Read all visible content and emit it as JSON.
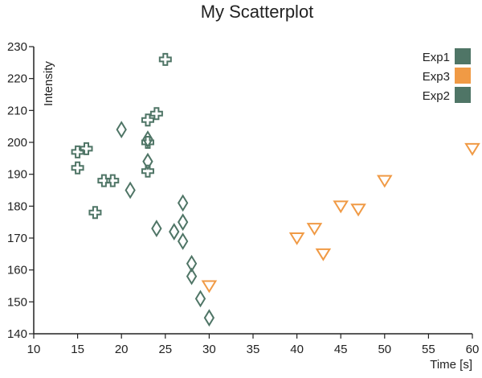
{
  "chart_data": {
    "type": "scatter",
    "title": "My Scatterplot",
    "xlabel": "Time [s]",
    "ylabel": "Intensity",
    "xlim": [
      10,
      60
    ],
    "ylim": [
      140,
      230
    ],
    "xticks": [
      10,
      15,
      20,
      25,
      30,
      35,
      40,
      45,
      50,
      55,
      60
    ],
    "yticks": [
      140,
      150,
      160,
      170,
      180,
      190,
      200,
      210,
      220,
      230
    ],
    "grid": false,
    "legend_position": "top-right",
    "series": [
      {
        "name": "Exp1",
        "marker": "cross",
        "color": "#4f7566",
        "points": [
          {
            "x": 15,
            "y": 197
          },
          {
            "x": 15,
            "y": 192
          },
          {
            "x": 16,
            "y": 198
          },
          {
            "x": 17,
            "y": 178
          },
          {
            "x": 18,
            "y": 188
          },
          {
            "x": 19,
            "y": 188
          },
          {
            "x": 23,
            "y": 207
          },
          {
            "x": 23,
            "y": 200
          },
          {
            "x": 23,
            "y": 191
          },
          {
            "x": 24,
            "y": 209
          },
          {
            "x": 25,
            "y": 226
          }
        ]
      },
      {
        "name": "Exp3",
        "marker": "triangle-down",
        "color": "#f09a45",
        "points": [
          {
            "x": 30,
            "y": 155
          },
          {
            "x": 40,
            "y": 170
          },
          {
            "x": 42,
            "y": 173
          },
          {
            "x": 43,
            "y": 165
          },
          {
            "x": 45,
            "y": 180
          },
          {
            "x": 47,
            "y": 179
          },
          {
            "x": 50,
            "y": 188
          },
          {
            "x": 60,
            "y": 198
          }
        ]
      },
      {
        "name": "Exp2",
        "marker": "diamond",
        "color": "#4f7566",
        "points": [
          {
            "x": 20,
            "y": 204
          },
          {
            "x": 21,
            "y": 185
          },
          {
            "x": 23,
            "y": 201
          },
          {
            "x": 23,
            "y": 194
          },
          {
            "x": 24,
            "y": 173
          },
          {
            "x": 26,
            "y": 172
          },
          {
            "x": 27,
            "y": 181
          },
          {
            "x": 27,
            "y": 175
          },
          {
            "x": 27,
            "y": 169
          },
          {
            "x": 28,
            "y": 162
          },
          {
            "x": 28,
            "y": 158
          },
          {
            "x": 29,
            "y": 151
          },
          {
            "x": 30,
            "y": 145
          }
        ]
      }
    ]
  }
}
